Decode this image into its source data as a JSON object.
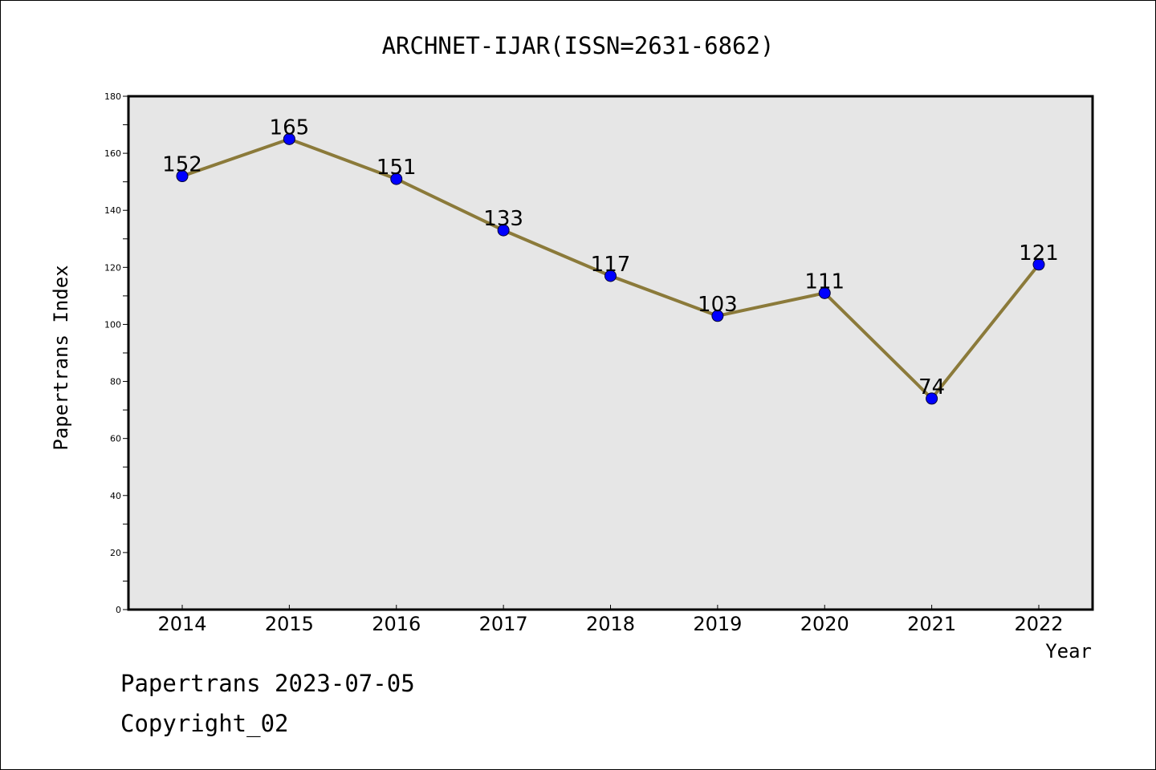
{
  "chart_data": {
    "type": "line",
    "title": "ARCHNET-IJAR(ISSN=2631-6862)",
    "xlabel": "Year",
    "ylabel": "Papertrans Index",
    "x": [
      "2014",
      "2015",
      "2016",
      "2017",
      "2018",
      "2019",
      "2020",
      "2021",
      "2022"
    ],
    "series": [
      {
        "values": [
          152,
          165,
          151,
          133,
          117,
          103,
          111,
          74,
          121
        ]
      }
    ],
    "ylim": [
      0,
      180
    ],
    "y_ticks": [
      0,
      20,
      40,
      60,
      80,
      100,
      120,
      140,
      160,
      180
    ],
    "grid": false,
    "legend": "none",
    "colors": {
      "line": "#8b7a3a",
      "marker": "#0000ff",
      "plot_background": "#e6e6e6"
    }
  },
  "footer": {
    "line1": "Papertrans 2023-07-05",
    "line2": "Copyright_02"
  }
}
